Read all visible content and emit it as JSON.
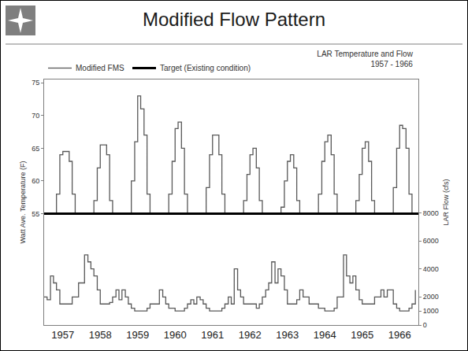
{
  "page_title": "Modified Flow Pattern",
  "chart_data": {
    "type": "line",
    "title": "LAR Temperature and Flow",
    "subtitle": "1957 - 1966",
    "y_label": "Watt Ave. Temperature (F)",
    "y2_label": "LAR Flow (cfs)",
    "legend": "top left",
    "grid": false,
    "xlim": [
      1957,
      1967
    ],
    "xticks": [
      {
        "value": 1957.5,
        "label": "1957"
      },
      {
        "value": 1958.5,
        "label": "1958"
      },
      {
        "value": 1959.5,
        "label": "1959"
      },
      {
        "value": 1960.5,
        "label": "1960"
      },
      {
        "value": 1961.5,
        "label": "1961"
      },
      {
        "value": 1962.5,
        "label": "1962"
      },
      {
        "value": 1963.5,
        "label": "1963"
      },
      {
        "value": 1964.5,
        "label": "1964"
      },
      {
        "value": 1965.5,
        "label": "1965"
      },
      {
        "value": 1966.5,
        "label": "1966"
      }
    ],
    "ylim": [
      38,
      75.5
    ],
    "yticks": [
      55,
      60,
      65,
      70,
      75
    ],
    "y2lim": [
      0,
      17500
    ],
    "y2ticks": [
      0,
      1000,
      2000,
      4000,
      6000,
      8000
    ],
    "x": [
      1957,
      1957.08,
      1957.17,
      1957.25,
      1957.33,
      1957.42,
      1957.5,
      1957.58,
      1957.67,
      1957.75,
      1957.83,
      1957.92,
      1958,
      1958.08,
      1958.17,
      1958.25,
      1958.33,
      1958.42,
      1958.5,
      1958.58,
      1958.67,
      1958.75,
      1958.83,
      1958.92,
      1959,
      1959.08,
      1959.17,
      1959.25,
      1959.33,
      1959.42,
      1959.5,
      1959.58,
      1959.67,
      1959.75,
      1959.83,
      1959.92,
      1960,
      1960.08,
      1960.17,
      1960.25,
      1960.33,
      1960.42,
      1960.5,
      1960.58,
      1960.67,
      1960.75,
      1960.83,
      1960.92,
      1961,
      1961.08,
      1961.17,
      1961.25,
      1961.33,
      1961.42,
      1961.5,
      1961.58,
      1961.67,
      1961.75,
      1961.83,
      1961.92,
      1962,
      1962.08,
      1962.17,
      1962.25,
      1962.33,
      1962.42,
      1962.5,
      1962.58,
      1962.67,
      1962.75,
      1962.83,
      1962.92,
      1963,
      1963.08,
      1963.17,
      1963.25,
      1963.33,
      1963.42,
      1963.5,
      1963.58,
      1963.67,
      1963.75,
      1963.83,
      1963.92,
      1964,
      1964.08,
      1964.17,
      1964.25,
      1964.33,
      1964.42,
      1964.5,
      1964.58,
      1964.67,
      1964.75,
      1964.83,
      1964.92,
      1965,
      1965.08,
      1965.17,
      1965.25,
      1965.33,
      1965.42,
      1965.5,
      1965.58,
      1965.67,
      1965.75,
      1965.83,
      1965.92,
      1966,
      1966.08,
      1966.17,
      1966.25,
      1966.33,
      1966.42,
      1966.5,
      1966.58,
      1966.67,
      1966.75,
      1966.83,
      1966.92
    ],
    "series": [
      {
        "name": "Modified FMS",
        "color": "#595959",
        "line_style": "step",
        "axis": "y",
        "values": [
          55,
          55,
          55,
          55,
          58,
          64,
          64.5,
          64.5,
          63,
          58,
          55,
          55,
          55,
          55,
          55,
          55,
          57,
          62,
          65.5,
          65.5,
          64,
          57,
          55,
          55,
          55,
          55,
          55,
          55,
          60,
          66,
          73,
          71,
          67,
          58,
          55,
          55,
          55,
          55,
          55,
          55,
          58,
          63,
          68,
          69,
          65,
          58,
          55,
          55,
          55,
          55,
          55,
          55,
          59,
          64,
          67,
          67,
          64,
          58,
          55,
          55,
          55,
          55,
          55,
          55,
          57,
          61,
          64,
          65,
          62,
          57,
          55,
          55,
          55,
          55,
          55,
          55,
          56,
          60,
          63,
          64,
          62,
          57,
          55,
          55,
          55,
          55,
          55,
          55,
          58,
          63,
          66,
          67,
          64,
          58,
          55,
          55,
          55,
          55,
          55,
          55,
          57,
          61,
          65,
          66,
          63,
          57,
          55,
          55,
          55,
          55,
          55,
          55,
          59,
          65,
          68.5,
          68,
          65,
          58,
          55,
          55
        ]
      },
      {
        "name": "Modified FMS",
        "color": "#595959",
        "line_style": "step",
        "axis": "y2",
        "values": [
          2000,
          1800,
          3500,
          3000,
          2500,
          1500,
          1500,
          1500,
          1500,
          2000,
          2000,
          3000,
          3000,
          5000,
          4500,
          4000,
          3500,
          2500,
          1500,
          1500,
          1500,
          1600,
          2000,
          2500,
          1800,
          2500,
          2000,
          1500,
          1200,
          1000,
          1000,
          1000,
          1000,
          1200,
          1500,
          1500,
          1500,
          2500,
          2000,
          1500,
          1200,
          1200,
          1000,
          1000,
          1000,
          1200,
          1500,
          1800,
          1500,
          2000,
          1800,
          1500,
          1200,
          1000,
          1000,
          1000,
          1000,
          1200,
          1500,
          2000,
          1500,
          4000,
          2500,
          2000,
          1500,
          1500,
          1500,
          1500,
          1200,
          1500,
          2000,
          2500,
          3000,
          4500,
          3000,
          4000,
          3500,
          2500,
          1500,
          1500,
          1500,
          1800,
          2500,
          2000,
          2000,
          1500,
          1500,
          1500,
          1200,
          1200,
          1000,
          1000,
          1000,
          1200,
          2000,
          2000,
          5000,
          3500,
          3000,
          3500,
          2500,
          1800,
          1500,
          1500,
          1500,
          1500,
          2000,
          2000,
          2500,
          2000,
          2500,
          2500,
          1500,
          1200,
          1000,
          1000,
          1000,
          1200,
          1500,
          2500
        ]
      },
      {
        "name": "Target (Existing condition)",
        "color": "#000000",
        "line_style": "thick",
        "axis": "y",
        "x": [
          1957,
          1967
        ],
        "values": [
          55,
          55
        ]
      }
    ]
  }
}
